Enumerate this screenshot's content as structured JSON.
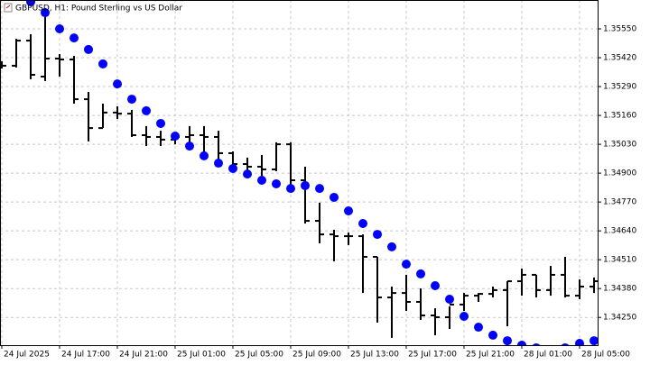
{
  "chart_data": {
    "type": "ohlc",
    "title": "GBPUSD, H1:  Pound Sterling vs US Dollar",
    "categories": [
      "24 Jul 2025",
      null,
      null,
      null,
      "24 Jul 17:00",
      null,
      null,
      null,
      "24 Jul 21:00",
      null,
      null,
      null,
      "25 Jul 01:00",
      null,
      null,
      null,
      "25 Jul 05:00",
      null,
      null,
      null,
      "25 Jul 09:00",
      null,
      null,
      null,
      "25 Jul 13:00",
      null,
      null,
      null,
      "25 Jul 17:00",
      null,
      null,
      null,
      "25 Jul 21:00",
      null,
      null,
      null,
      "28 Jul 01:00",
      null,
      null,
      null,
      "28 Jul 05:00",
      null
    ],
    "open": [
      1.35388,
      1.35384,
      1.35497,
      1.35335,
      1.35416,
      1.35412,
      1.35233,
      1.35103,
      1.35173,
      1.35168,
      1.35071,
      1.35063,
      1.35051,
      1.35063,
      1.35071,
      1.35063,
      1.3499,
      1.34941,
      1.34929,
      1.34917,
      1.3503,
      1.34868,
      1.34685,
      1.34624,
      1.34616,
      1.34616,
      1.34523,
      1.3434,
      1.3436,
      1.3432,
      1.34259,
      1.34251,
      1.34308,
      1.34348,
      1.34356,
      1.34373,
      1.34413,
      1.34442,
      1.34373,
      1.34442,
      1.34348,
      1.34389
    ],
    "high": [
      1.35404,
      1.35505,
      1.35526,
      1.35639,
      1.35436,
      1.35428,
      1.35266,
      1.35213,
      1.35201,
      1.35185,
      1.35112,
      1.35091,
      1.35079,
      1.35112,
      1.35112,
      1.35091,
      1.34998,
      1.3497,
      1.34982,
      1.35039,
      1.35039,
      1.34929,
      1.34767,
      1.34645,
      1.34633,
      1.34624,
      1.34523,
      1.34389,
      1.34442,
      1.34381,
      1.34291,
      1.343,
      1.3436,
      1.3436,
      1.34389,
      1.34413,
      1.3447,
      1.34442,
      1.34482,
      1.34523,
      1.34421,
      1.3443
    ],
    "low": [
      1.35371,
      1.35376,
      1.35323,
      1.35315,
      1.35335,
      1.35213,
      1.35043,
      1.35103,
      1.35144,
      1.35063,
      1.35022,
      1.35022,
      1.3503,
      1.3501,
      1.3499,
      1.34929,
      1.34909,
      1.34888,
      1.34888,
      1.34909,
      1.34847,
      1.34673,
      1.34584,
      1.34503,
      1.34576,
      1.3436,
      1.34227,
      1.34158,
      1.34279,
      1.34239,
      1.3417,
      1.34198,
      1.34279,
      1.3432,
      1.3434,
      1.3421,
      1.34348,
      1.3434,
      1.34348,
      1.3434,
      1.34332,
      1.3436
    ],
    "close": [
      1.35384,
      1.35497,
      1.35343,
      1.35416,
      1.35412,
      1.35233,
      1.35103,
      1.35173,
      1.35168,
      1.35071,
      1.35063,
      1.35051,
      1.35063,
      1.35071,
      1.35063,
      1.3499,
      1.34941,
      1.34929,
      1.34917,
      1.3503,
      1.34868,
      1.34685,
      1.34624,
      1.34616,
      1.34616,
      1.34523,
      1.3434,
      1.3436,
      1.3432,
      1.34259,
      1.34251,
      1.34308,
      1.34348,
      1.34356,
      1.34373,
      1.34413,
      1.34442,
      1.34373,
      1.34442,
      1.34348,
      1.34389,
      1.34413
    ],
    "color": "#000000",
    "sar": {
      "color": "#0000ff",
      "values": [
        null,
        null,
        1.35672,
        1.35623,
        1.3555,
        1.35509,
        1.35457,
        1.35392,
        1.35302,
        1.35233,
        1.35181,
        1.35124,
        1.35067,
        1.35022,
        1.34978,
        1.34945,
        1.34921,
        1.34896,
        1.34868,
        1.34852,
        1.34831,
        1.34844,
        1.34831,
        1.34791,
        1.3473,
        1.34673,
        1.34624,
        1.34568,
        1.3449,
        1.34446,
        1.34393,
        1.34332,
        1.34255,
        1.34206,
        1.3417,
        1.34145,
        1.34125,
        1.34113,
        1.34105,
        1.34113,
        1.34133,
        1.34145
      ]
    },
    "ylim": [
      1.34125,
      1.3568
    ],
    "yticks": [
      {
        "value": 1.3555,
        "label": "1.35550"
      },
      {
        "value": 1.3542,
        "label": "1.35420"
      },
      {
        "value": 1.3529,
        "label": "1.35290"
      },
      {
        "value": 1.3516,
        "label": "1.35160"
      },
      {
        "value": 1.3503,
        "label": "1.35030"
      },
      {
        "value": 1.349,
        "label": "1.34900"
      },
      {
        "value": 1.3477,
        "label": "1.34770"
      },
      {
        "value": 1.3464,
        "label": "1.34640"
      },
      {
        "value": 1.3451,
        "label": "1.34510"
      },
      {
        "value": 1.3438,
        "label": "1.34380"
      },
      {
        "value": 1.3425,
        "label": "1.34250"
      }
    ],
    "grid": true
  }
}
